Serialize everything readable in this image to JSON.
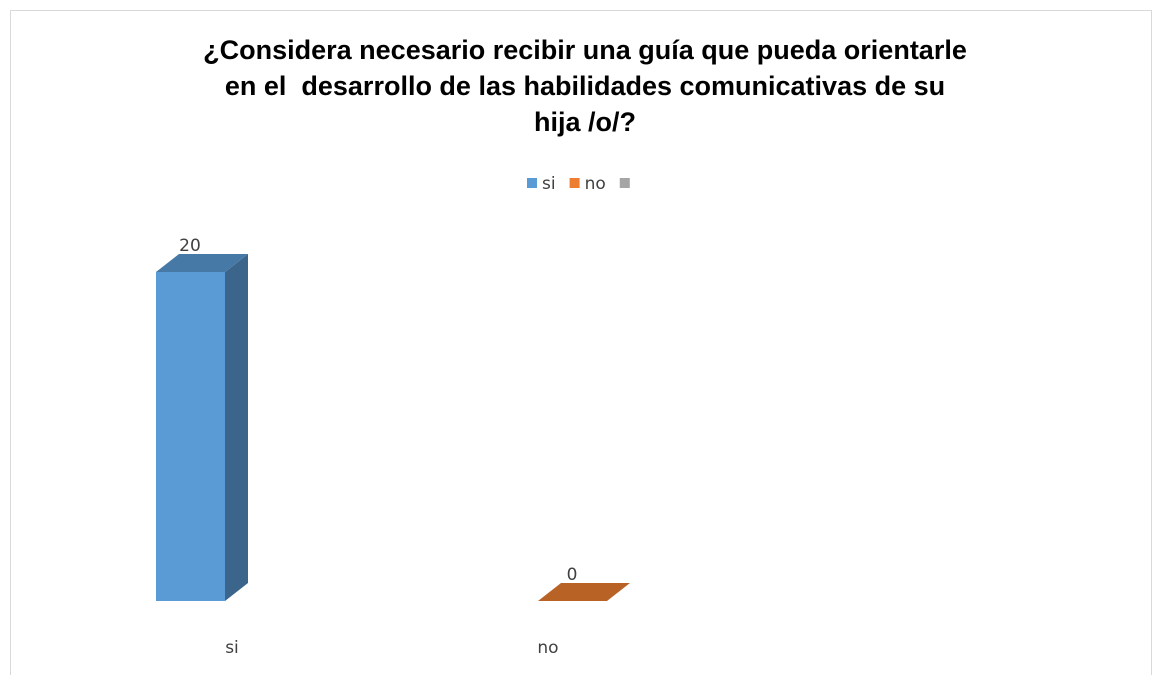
{
  "chart_data": {
    "type": "bar3d",
    "title": [
      "¿Considera necesario recibir una guía que pueda orientarle",
      "en el  desarrollo de las habilidades comunicativas de su",
      "hija /o/?"
    ],
    "categories": [
      "si",
      "no",
      null
    ],
    "values": [
      20,
      0,
      null
    ],
    "colors": [
      "#5b9bd5",
      "#ed7d31",
      "#a5a5a5"
    ],
    "ylim": [
      0,
      20
    ],
    "legend": "top"
  }
}
